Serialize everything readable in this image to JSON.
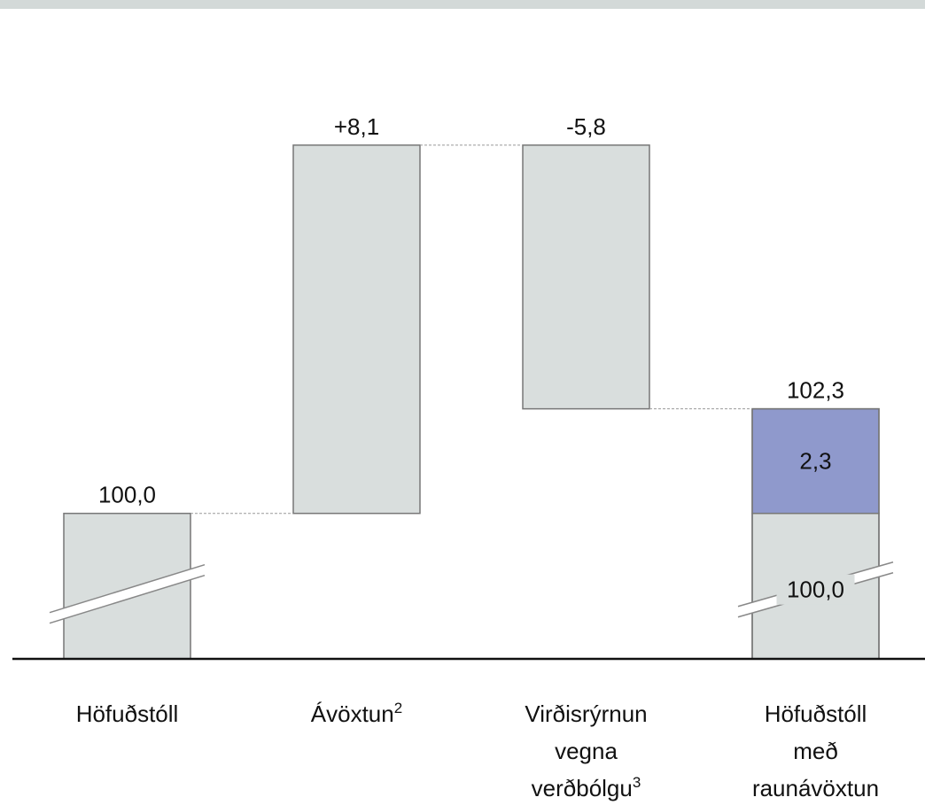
{
  "chart_data": {
    "type": "waterfall",
    "categories": [
      "Höfuðstóll",
      "Ávöxtun",
      "Virðisrýrnun vegna verðbólgu",
      "Höfuðstóll með raunávöxtun"
    ],
    "footnote_marks": [
      null,
      "2",
      "3",
      null
    ],
    "values": [
      100.0,
      8.1,
      -5.8,
      102.3
    ],
    "value_labels": [
      "100,0",
      "+8,1",
      "-5,8",
      "102,3"
    ],
    "total_segments": [
      {
        "value": 100.0,
        "label": "100,0",
        "color": "#d9dedd"
      },
      {
        "value": 2.3,
        "label": "2,3",
        "color": "#8f99cc"
      }
    ],
    "color": "#d9dedd",
    "ylim": [
      96.8,
      109.5
    ],
    "axis_break": true
  }
}
